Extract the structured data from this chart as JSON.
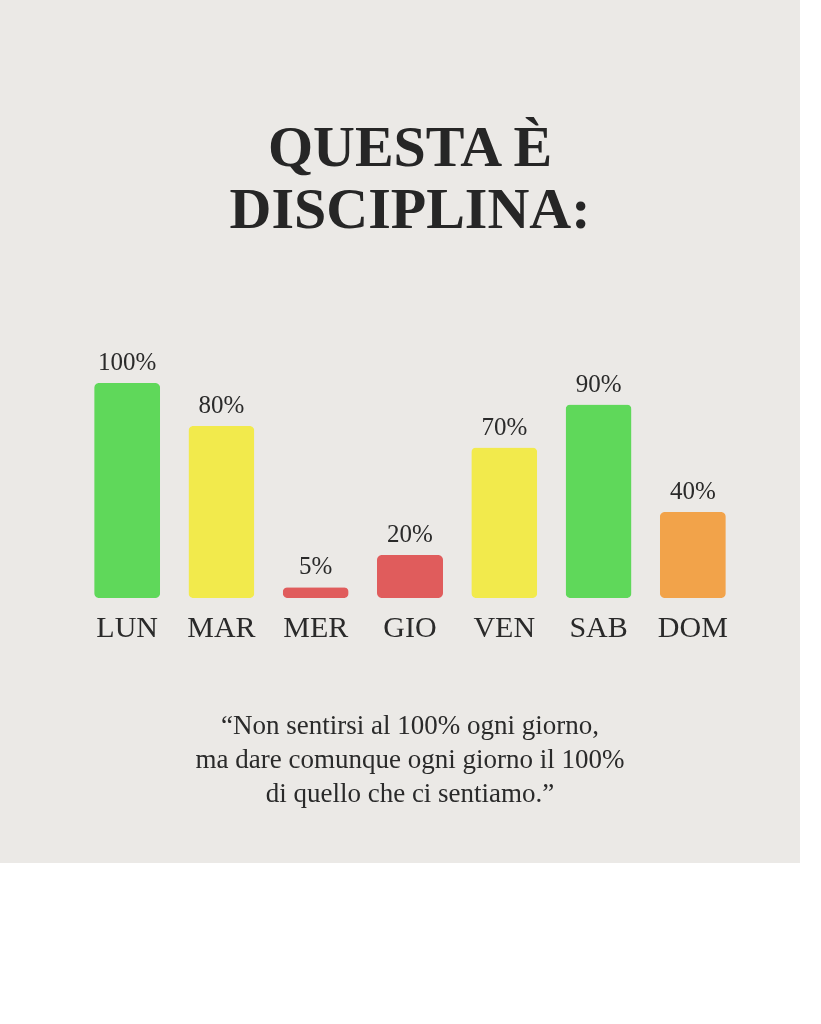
{
  "chart_data": {
    "type": "bar",
    "title": "QUESTA È\nDISCIPLINA:",
    "categories": [
      "LUN",
      "MAR",
      "MER",
      "GIO",
      "VEN",
      "SAB",
      "DOM"
    ],
    "values": [
      100,
      80,
      5,
      20,
      70,
      90,
      40
    ],
    "colors": [
      "#5fd85a",
      "#f2ea4c",
      "#e05c5c",
      "#e05c5c",
      "#f2ea4c",
      "#5fd85a",
      "#f2a34a"
    ],
    "data_labels": true,
    "value_labels": [
      "100%",
      "80%",
      "5%",
      "20%",
      "70%",
      "90%",
      "40%"
    ],
    "annotations": [
      "“Non sentirsi al 100% ogni giorno,\nma dare comunque ogni giorno il 100%\ndi quello che ci sentiamo.”"
    ]
  }
}
